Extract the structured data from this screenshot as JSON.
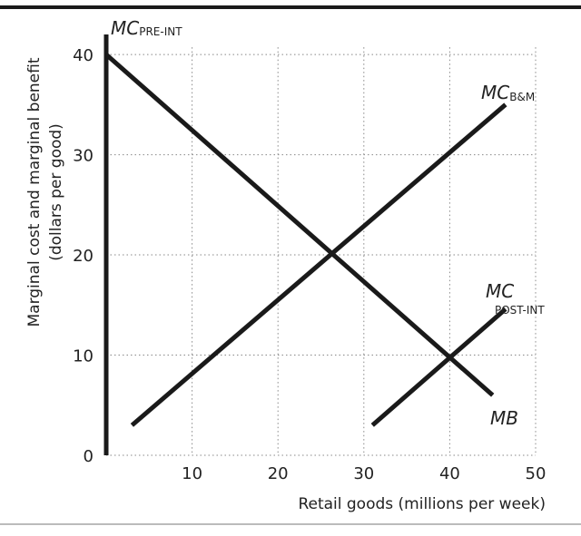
{
  "chart_data": {
    "type": "line",
    "x_label": "Retail goods (millions per week)",
    "y_label": [
      "Marginal cost and marginal benefit",
      "(dollars per good)"
    ],
    "xlim": [
      0,
      50
    ],
    "ylim": [
      0,
      42
    ],
    "xticks": [
      10,
      20,
      30,
      40,
      50
    ],
    "yticks": [
      0,
      10,
      20,
      30,
      40
    ],
    "grid": true,
    "series": [
      {
        "name": "MC",
        "subscript": "PRE-INT",
        "color": "#1a1a1a",
        "x": [
          0,
          0
        ],
        "values": [
          0,
          42
        ]
      },
      {
        "name": "MB",
        "color": "#1a1a1a",
        "x": [
          0,
          45
        ],
        "values": [
          40,
          6
        ]
      },
      {
        "name": "MC",
        "subscript": "B&M",
        "color": "#1a1a1a",
        "x": [
          3,
          46.5
        ],
        "values": [
          3,
          35
        ]
      },
      {
        "name": "MC",
        "subscript": "POST-INT",
        "color": "#1a1a1a",
        "x": [
          31,
          46.5
        ],
        "values": [
          3,
          14.6
        ]
      }
    ]
  }
}
